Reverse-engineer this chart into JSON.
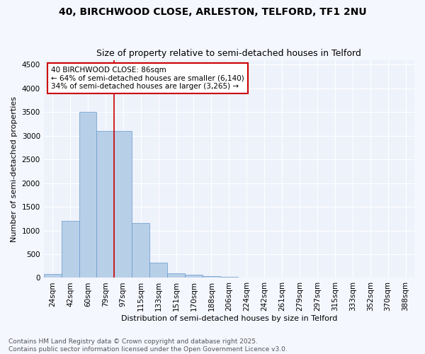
{
  "title1": "40, BIRCHWOOD CLOSE, ARLESTON, TELFORD, TF1 2NU",
  "title2": "Size of property relative to semi-detached houses in Telford",
  "xlabel": "Distribution of semi-detached houses by size in Telford",
  "ylabel": "Number of semi-detached properties",
  "categories": [
    "24sqm",
    "42sqm",
    "60sqm",
    "79sqm",
    "97sqm",
    "115sqm",
    "133sqm",
    "151sqm",
    "170sqm",
    "188sqm",
    "206sqm",
    "224sqm",
    "242sqm",
    "261sqm",
    "279sqm",
    "297sqm",
    "315sqm",
    "333sqm",
    "352sqm",
    "370sqm",
    "388sqm"
  ],
  "values": [
    80,
    1200,
    3500,
    3100,
    3100,
    1150,
    320,
    100,
    60,
    40,
    20,
    10,
    8,
    5,
    4,
    3,
    2,
    1,
    1,
    1,
    1
  ],
  "bar_color": "#b8cfe8",
  "bar_edge_color": "#6699cc",
  "annotation_text": "40 BIRCHWOOD CLOSE: 86sqm\n← 64% of semi-detached houses are smaller (6,140)\n34% of semi-detached houses are larger (3,265) →",
  "vline_color": "#cc0000",
  "annotation_box_color": "#ffffff",
  "annotation_box_edge": "#cc0000",
  "footer1": "Contains HM Land Registry data © Crown copyright and database right 2025.",
  "footer2": "Contains public sector information licensed under the Open Government Licence v3.0.",
  "ylim": [
    0,
    4600
  ],
  "yticks": [
    0,
    500,
    1000,
    1500,
    2000,
    2500,
    3000,
    3500,
    4000,
    4500
  ],
  "background_color": "#eef2fb",
  "grid_color": "#ffffff",
  "fig_bg_color": "#f5f7ff",
  "title_fontsize": 10,
  "subtitle_fontsize": 9,
  "axis_label_fontsize": 8,
  "tick_fontsize": 7.5,
  "annotation_fontsize": 7.5,
  "footer_fontsize": 6.5
}
